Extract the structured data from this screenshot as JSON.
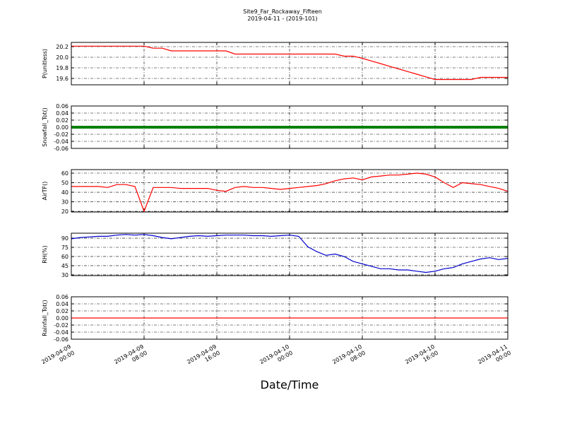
{
  "chart_data": [
    {
      "type": "line",
      "title": "Site9_Far_Rockaway_Fifteen",
      "subtitle": "2019-04-11 - (2019-101)",
      "ylabel": "P(unitless)",
      "color": "#ff0000",
      "xlim": [
        "2019-04-09 00:00",
        "2019-04-11 00:00"
      ],
      "xticks": [
        "2019-04-09 00:00",
        "2019-04-09 08:00",
        "2019-04-09 16:00",
        "2019-04-10 00:00",
        "2019-04-10 08:00",
        "2019-04-10 16:00",
        "2019-04-11 00:00"
      ],
      "ylim": [
        19.48,
        20.28
      ],
      "yticks": [
        {
          "value": 19.6,
          "label": "19.6"
        },
        {
          "value": 19.8,
          "label": "19.8"
        },
        {
          "value": 20,
          "label": "20.0"
        },
        {
          "value": 20.2,
          "label": "20.2"
        }
      ],
      "grid": true,
      "x": [
        "2019-04-09 00:00",
        "2019-04-09 01:00",
        "2019-04-09 02:00",
        "2019-04-09 03:00",
        "2019-04-09 04:00",
        "2019-04-09 05:00",
        "2019-04-09 06:00",
        "2019-04-09 07:00",
        "2019-04-09 08:00",
        "2019-04-09 09:00",
        "2019-04-09 10:00",
        "2019-04-09 11:00",
        "2019-04-09 12:00",
        "2019-04-09 13:00",
        "2019-04-09 14:00",
        "2019-04-09 15:00",
        "2019-04-09 16:00",
        "2019-04-09 17:00",
        "2019-04-09 18:00",
        "2019-04-09 19:00",
        "2019-04-09 20:00",
        "2019-04-09 21:00",
        "2019-04-09 22:00",
        "2019-04-09 23:00",
        "2019-04-10 00:00",
        "2019-04-10 01:00",
        "2019-04-10 02:00",
        "2019-04-10 03:00",
        "2019-04-10 04:00",
        "2019-04-10 05:00",
        "2019-04-10 06:00",
        "2019-04-10 07:00",
        "2019-04-10 08:00",
        "2019-04-10 09:00",
        "2019-04-10 10:00",
        "2019-04-10 11:00",
        "2019-04-10 12:00",
        "2019-04-10 13:00",
        "2019-04-10 14:00",
        "2019-04-10 15:00",
        "2019-04-10 16:00",
        "2019-04-10 17:00",
        "2019-04-10 18:00",
        "2019-04-10 19:00",
        "2019-04-10 20:00",
        "2019-04-10 21:00",
        "2019-04-10 22:00",
        "2019-04-10 23:00",
        "2019-04-11 00:00"
      ],
      "values": [
        20.21,
        20.21,
        20.21,
        20.21,
        20.21,
        20.21,
        20.21,
        20.21,
        20.21,
        20.17,
        20.17,
        20.12,
        20.12,
        20.12,
        20.12,
        20.12,
        20.12,
        20.12,
        20.06,
        20.06,
        20.06,
        20.06,
        20.06,
        20.06,
        20.06,
        20.06,
        20.06,
        20.06,
        20.06,
        20.06,
        20.02,
        20.02,
        19.98,
        19.93,
        19.88,
        19.83,
        19.78,
        19.73,
        19.68,
        19.63,
        19.58,
        19.58,
        19.58,
        19.58,
        19.58,
        19.62,
        19.62,
        19.62,
        19.62
      ]
    },
    {
      "type": "line",
      "ylabel": "Snowfall_Tot()",
      "color": "#008000",
      "xlim": [
        "2019-04-09 00:00",
        "2019-04-11 00:00"
      ],
      "xticks": [
        "2019-04-09 00:00",
        "2019-04-09 08:00",
        "2019-04-09 16:00",
        "2019-04-10 00:00",
        "2019-04-10 08:00",
        "2019-04-10 16:00",
        "2019-04-11 00:00"
      ],
      "ylim": [
        -0.06,
        0.06
      ],
      "yticks": [
        -0.06,
        -0.04,
        -0.02,
        {
          "value": 0,
          "label": "0.00"
        },
        0.02,
        0.04,
        0.06
      ],
      "grid": true,
      "x": [
        "2019-04-09 00:00",
        "2019-04-11 00:00"
      ],
      "values": [
        0,
        0
      ]
    },
    {
      "type": "line",
      "ylabel": "AirTF()",
      "color": "#ff0000",
      "xlim": [
        "2019-04-09 00:00",
        "2019-04-11 00:00"
      ],
      "xticks": [
        "2019-04-09 00:00",
        "2019-04-09 08:00",
        "2019-04-09 16:00",
        "2019-04-10 00:00",
        "2019-04-10 08:00",
        "2019-04-10 16:00",
        "2019-04-11 00:00"
      ],
      "ylim": [
        19.3,
        63.7
      ],
      "yticks": [
        20,
        30,
        40,
        50,
        60
      ],
      "grid": true,
      "x": [
        "2019-04-09 00:00",
        "2019-04-09 01:00",
        "2019-04-09 02:00",
        "2019-04-09 03:00",
        "2019-04-09 04:00",
        "2019-04-09 05:00",
        "2019-04-09 06:00",
        "2019-04-09 07:00",
        "2019-04-09 08:00",
        "2019-04-09 09:00",
        "2019-04-09 10:00",
        "2019-04-09 11:00",
        "2019-04-09 12:00",
        "2019-04-09 13:00",
        "2019-04-09 14:00",
        "2019-04-09 15:00",
        "2019-04-09 16:00",
        "2019-04-09 17:00",
        "2019-04-09 18:00",
        "2019-04-09 19:00",
        "2019-04-09 20:00",
        "2019-04-09 21:00",
        "2019-04-09 22:00",
        "2019-04-09 23:00",
        "2019-04-10 00:00",
        "2019-04-10 01:00",
        "2019-04-10 02:00",
        "2019-04-10 03:00",
        "2019-04-10 04:00",
        "2019-04-10 05:00",
        "2019-04-10 06:00",
        "2019-04-10 07:00",
        "2019-04-10 08:00",
        "2019-04-10 09:00",
        "2019-04-10 10:00",
        "2019-04-10 11:00",
        "2019-04-10 12:00",
        "2019-04-10 13:00",
        "2019-04-10 14:00",
        "2019-04-10 15:00",
        "2019-04-10 16:00",
        "2019-04-10 17:00",
        "2019-04-10 18:00",
        "2019-04-10 19:00",
        "2019-04-10 20:00",
        "2019-04-10 21:00",
        "2019-04-10 22:00",
        "2019-04-10 23:00",
        "2019-04-11 00:00"
      ],
      "values": [
        46,
        46,
        46,
        46,
        45,
        48,
        48,
        46,
        20,
        45,
        45,
        45,
        44,
        44,
        44,
        44,
        42,
        41,
        45,
        46,
        45,
        45,
        44,
        43,
        44,
        45,
        46,
        47,
        49,
        52,
        54,
        55,
        53,
        56,
        57,
        58,
        58,
        59,
        60,
        59,
        56,
        50,
        45,
        50,
        49,
        48,
        46,
        44,
        41
      ]
    },
    {
      "type": "line",
      "ylabel": "RH(%)",
      "color": "#0000cc",
      "xlim": [
        "2019-04-09 00:00",
        "2019-04-11 00:00"
      ],
      "xticks": [
        "2019-04-09 00:00",
        "2019-04-09 08:00",
        "2019-04-09 16:00",
        "2019-04-10 00:00",
        "2019-04-10 08:00",
        "2019-04-10 16:00",
        "2019-04-11 00:00"
      ],
      "ylim": [
        28.8,
        98.1
      ],
      "yticks": [
        30,
        45,
        60,
        75,
        90
      ],
      "grid": true,
      "x": [
        "2019-04-09 00:00",
        "2019-04-09 01:00",
        "2019-04-09 02:00",
        "2019-04-09 03:00",
        "2019-04-09 04:00",
        "2019-04-09 05:00",
        "2019-04-09 06:00",
        "2019-04-09 07:00",
        "2019-04-09 08:00",
        "2019-04-09 09:00",
        "2019-04-09 10:00",
        "2019-04-09 11:00",
        "2019-04-09 12:00",
        "2019-04-09 13:00",
        "2019-04-09 14:00",
        "2019-04-09 15:00",
        "2019-04-09 16:00",
        "2019-04-09 17:00",
        "2019-04-09 18:00",
        "2019-04-09 19:00",
        "2019-04-09 20:00",
        "2019-04-09 21:00",
        "2019-04-09 22:00",
        "2019-04-09 23:00",
        "2019-04-10 00:00",
        "2019-04-10 01:00",
        "2019-04-10 02:00",
        "2019-04-10 03:00",
        "2019-04-10 04:00",
        "2019-04-10 05:00",
        "2019-04-10 06:00",
        "2019-04-10 07:00",
        "2019-04-10 08:00",
        "2019-04-10 09:00",
        "2019-04-10 10:00",
        "2019-04-10 11:00",
        "2019-04-10 12:00",
        "2019-04-10 13:00",
        "2019-04-10 14:00",
        "2019-04-10 15:00",
        "2019-04-10 16:00",
        "2019-04-10 17:00",
        "2019-04-10 18:00",
        "2019-04-10 19:00",
        "2019-04-10 20:00",
        "2019-04-10 21:00",
        "2019-04-10 22:00",
        "2019-04-10 23:00",
        "2019-04-11 00:00"
      ],
      "values": [
        89,
        91,
        92,
        93,
        93,
        95,
        96,
        95,
        96,
        94,
        91,
        89,
        91,
        93,
        94,
        93,
        94,
        95,
        95,
        95,
        94,
        94,
        93,
        94,
        95,
        93,
        76,
        68,
        62,
        64,
        60,
        52,
        48,
        44,
        40,
        40,
        38,
        38,
        36,
        34,
        36,
        40,
        42,
        48,
        52,
        56,
        58,
        55,
        57
      ]
    },
    {
      "type": "line",
      "ylabel": "Rainfall_Tot()",
      "xlabel": "Date/Time",
      "color": "#ff0000",
      "xlim": [
        "2019-04-09 00:00",
        "2019-04-11 00:00"
      ],
      "xticks": [
        "2019-04-09 00:00",
        "2019-04-09 08:00",
        "2019-04-09 16:00",
        "2019-04-10 00:00",
        "2019-04-10 08:00",
        "2019-04-10 16:00",
        "2019-04-11 00:00"
      ],
      "ylim": [
        -0.06,
        0.06
      ],
      "yticks": [
        -0.06,
        -0.04,
        -0.02,
        {
          "value": 0,
          "label": "0.00"
        },
        0.02,
        0.04,
        0.06
      ],
      "grid": true,
      "x": [
        "2019-04-09 00:00",
        "2019-04-11 00:00"
      ],
      "values": [
        0,
        0
      ]
    }
  ]
}
